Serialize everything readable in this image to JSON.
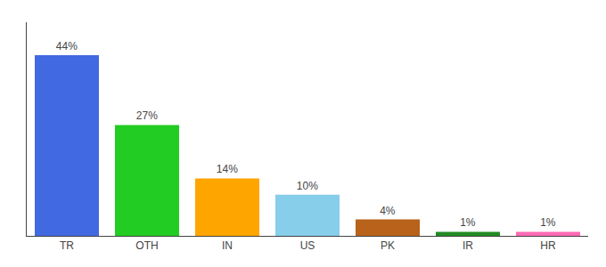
{
  "chart_data": {
    "type": "bar",
    "categories": [
      "TR",
      "OTH",
      "IN",
      "US",
      "PK",
      "IR",
      "HR"
    ],
    "values": [
      44,
      27,
      14,
      10,
      4,
      1,
      1
    ],
    "value_labels": [
      "44%",
      "27%",
      "14%",
      "10%",
      "4%",
      "1%",
      "1%"
    ],
    "colors": [
      "#4169e1",
      "#22cc22",
      "#ffa500",
      "#87ceeb",
      "#b8621b",
      "#228B22",
      "#ff69b4"
    ],
    "ylim": [
      0,
      52
    ],
    "data_labels": true,
    "tick_labels": "x",
    "grid": false
  }
}
